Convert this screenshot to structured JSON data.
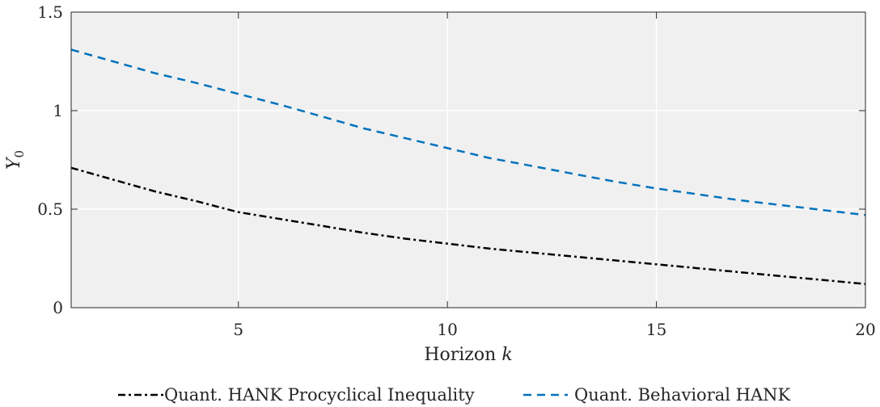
{
  "chart_data": {
    "type": "line",
    "xlabel": "Horizon",
    "xlabel_var": "k",
    "ylabel": "Y",
    "ylabel_sub": "0",
    "xlim": [
      1,
      20
    ],
    "ylim": [
      0,
      1.5
    ],
    "x_ticks": [
      5,
      10,
      15,
      20
    ],
    "x_tick_labels": [
      "5",
      "10",
      "15",
      "20"
    ],
    "y_ticks": [
      0,
      0.5,
      1,
      1.5
    ],
    "y_tick_labels": [
      "0",
      "0.5",
      "1",
      "1.5"
    ],
    "grid": true,
    "background": "#f0f0f0",
    "legend_position": "bottom",
    "series": [
      {
        "name": "Quant. HANK Procyclical Inequality",
        "color": "#000000",
        "dash": "dash-dot",
        "x": [
          1,
          2,
          3,
          4,
          5,
          6,
          7,
          8,
          9,
          10,
          11,
          12,
          13,
          14,
          15,
          16,
          17,
          18,
          19,
          20
        ],
        "y": [
          0.71,
          0.65,
          0.59,
          0.54,
          0.485,
          0.45,
          0.415,
          0.38,
          0.35,
          0.325,
          0.3,
          0.28,
          0.26,
          0.24,
          0.22,
          0.2,
          0.18,
          0.16,
          0.14,
          0.12
        ]
      },
      {
        "name": "Quant. Behavioral HANK",
        "color": "#0072BD",
        "dash": "dashed",
        "x": [
          1,
          2,
          3,
          4,
          5,
          6,
          7,
          8,
          9,
          10,
          11,
          12,
          13,
          14,
          15,
          16,
          17,
          18,
          19,
          20
        ],
        "y": [
          1.31,
          1.25,
          1.19,
          1.14,
          1.085,
          1.03,
          0.97,
          0.91,
          0.86,
          0.81,
          0.76,
          0.72,
          0.68,
          0.64,
          0.605,
          0.575,
          0.545,
          0.52,
          0.495,
          0.47
        ]
      }
    ]
  }
}
